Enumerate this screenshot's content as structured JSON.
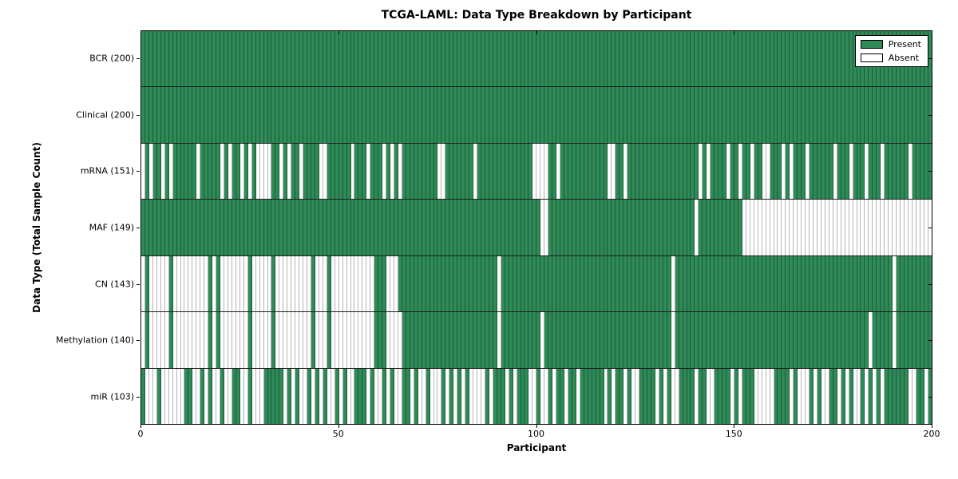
{
  "title": "TCGA-LAML: Data Type Breakdown by Participant",
  "axes": {
    "xlabel": "Participant",
    "ylabel": "Data Type (Total Sample Count)"
  },
  "legend": {
    "items": [
      {
        "label": "Present",
        "color": "#2e8b57"
      },
      {
        "label": "Absent",
        "color": "#ffffff"
      }
    ],
    "position": "upper right"
  },
  "colors": {
    "present_fill": "#2e8b57",
    "present_edge": "#1c5937",
    "absent_fill": "#ffffff",
    "absent_edge": "#b3b3b3",
    "row_separator": "#1f1f1f",
    "frame": "#000000"
  },
  "chart_data": {
    "type": "heatmap",
    "title": "TCGA-LAML: Data Type Breakdown by Participant",
    "xlabel": "Participant",
    "ylabel": "Data Type (Total Sample Count)",
    "x_range": [
      0,
      200
    ],
    "x_ticks": [
      0,
      50,
      100,
      150,
      200
    ],
    "n_participants": 200,
    "legend_entries": [
      "Present",
      "Absent"
    ],
    "grid": false,
    "rows": [
      {
        "label": "BCR (200)",
        "data_type": "BCR",
        "present_count": 200,
        "absent_participants": []
      },
      {
        "label": "Clinical (200)",
        "data_type": "Clinical",
        "present_count": 200,
        "absent_participants": []
      },
      {
        "label": "mRNA (151)",
        "data_type": "mRNA",
        "present_count": 151,
        "absent_participants": [
          0,
          2,
          5,
          7,
          14,
          20,
          22,
          25,
          27,
          29,
          30,
          31,
          32,
          35,
          37,
          40,
          45,
          46,
          53,
          57,
          61,
          63,
          65,
          75,
          76,
          84,
          99,
          100,
          101,
          102,
          105,
          118,
          119,
          122,
          141,
          143,
          148,
          151,
          154,
          157,
          158,
          162,
          164,
          168,
          175,
          179,
          183,
          187,
          194
        ]
      },
      {
        "label": "MAF (149)",
        "data_type": "MAF",
        "present_count": 149,
        "absent_participants": [
          101,
          102,
          140,
          152,
          153,
          154,
          155,
          156,
          157,
          158,
          159,
          160,
          161,
          162,
          163,
          164,
          165,
          166,
          167,
          168,
          169,
          170,
          171,
          172,
          173,
          174,
          175,
          176,
          177,
          178,
          179,
          180,
          181,
          182,
          183,
          184,
          185,
          186,
          187,
          188,
          189,
          190,
          191,
          192,
          193,
          194,
          195,
          196,
          197,
          198,
          199
        ]
      },
      {
        "label": "CN (143)",
        "data_type": "CN",
        "present_count": 143,
        "absent_participants": [
          0,
          2,
          3,
          4,
          5,
          6,
          8,
          9,
          10,
          11,
          12,
          13,
          14,
          15,
          16,
          18,
          20,
          21,
          22,
          23,
          24,
          25,
          26,
          28,
          29,
          30,
          31,
          32,
          34,
          35,
          36,
          37,
          38,
          39,
          40,
          41,
          42,
          44,
          45,
          46,
          48,
          49,
          50,
          51,
          52,
          53,
          54,
          55,
          56,
          57,
          58,
          62,
          63,
          64,
          90,
          134,
          190
        ]
      },
      {
        "label": "Methylation (140)",
        "data_type": "Methylation",
        "present_count": 140,
        "absent_participants": [
          0,
          2,
          3,
          4,
          5,
          6,
          8,
          9,
          10,
          11,
          12,
          13,
          14,
          15,
          16,
          18,
          20,
          21,
          22,
          23,
          24,
          25,
          26,
          28,
          29,
          30,
          31,
          32,
          34,
          35,
          36,
          37,
          38,
          39,
          40,
          41,
          42,
          44,
          45,
          46,
          48,
          49,
          50,
          51,
          52,
          53,
          54,
          55,
          56,
          57,
          58,
          62,
          63,
          64,
          65,
          90,
          101,
          134,
          184,
          190
        ]
      },
      {
        "label": "miR (103)",
        "data_type": "miR",
        "present_count": 103,
        "absent_participants": [
          1,
          2,
          3,
          5,
          6,
          7,
          8,
          9,
          10,
          13,
          14,
          16,
          18,
          19,
          21,
          22,
          25,
          26,
          28,
          29,
          30,
          36,
          38,
          40,
          41,
          43,
          45,
          47,
          48,
          50,
          52,
          53,
          57,
          59,
          60,
          62,
          64,
          65,
          68,
          70,
          71,
          73,
          74,
          75,
          77,
          79,
          81,
          83,
          84,
          85,
          86,
          88,
          92,
          94,
          98,
          99,
          101,
          102,
          104,
          107,
          110,
          117,
          119,
          122,
          124,
          125,
          130,
          132,
          134,
          135,
          140,
          143,
          144,
          149,
          151,
          155,
          156,
          157,
          158,
          159,
          164,
          166,
          167,
          168,
          170,
          172,
          173,
          176,
          178,
          180,
          181,
          183,
          185,
          187,
          194,
          195,
          198
        ]
      }
    ]
  }
}
